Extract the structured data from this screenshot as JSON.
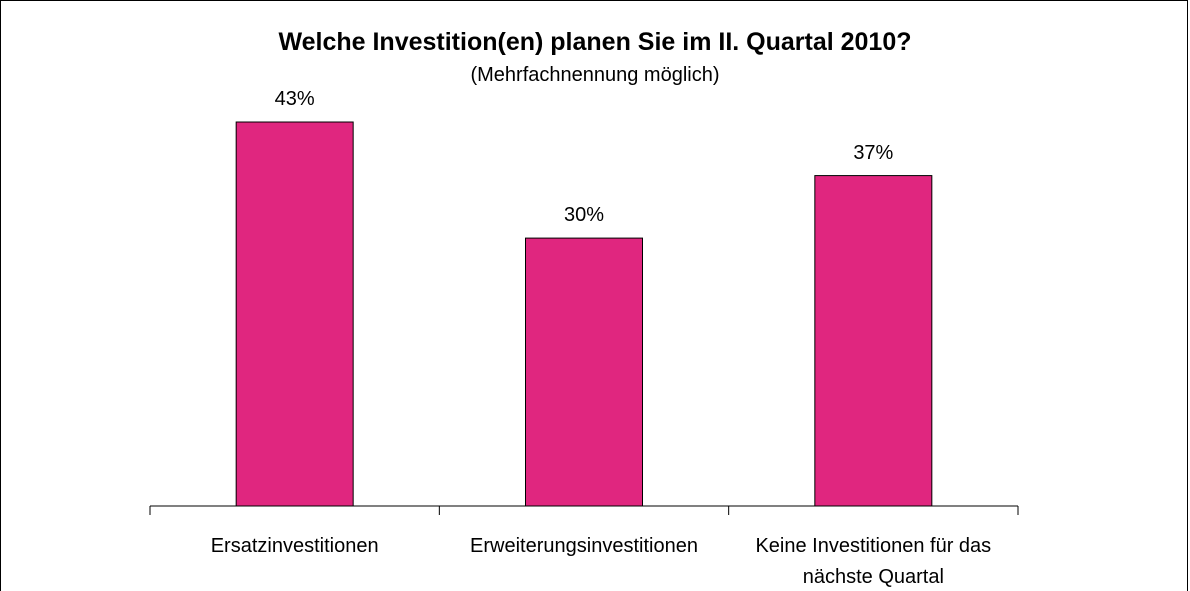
{
  "chart_data": {
    "type": "bar",
    "title": "Welche Investition(en) planen Sie im II. Quartal 2010?",
    "subtitle": "(Mehrfachnennung möglich)",
    "categories": [
      "Ersatzinvestitionen",
      "Erweiterungsinvestitionen",
      "Keine Investitionen für das nächste Quartal"
    ],
    "values": [
      43,
      30,
      37
    ],
    "value_labels": [
      "43%",
      "30%",
      "37%"
    ],
    "color": "#e0267f"
  }
}
